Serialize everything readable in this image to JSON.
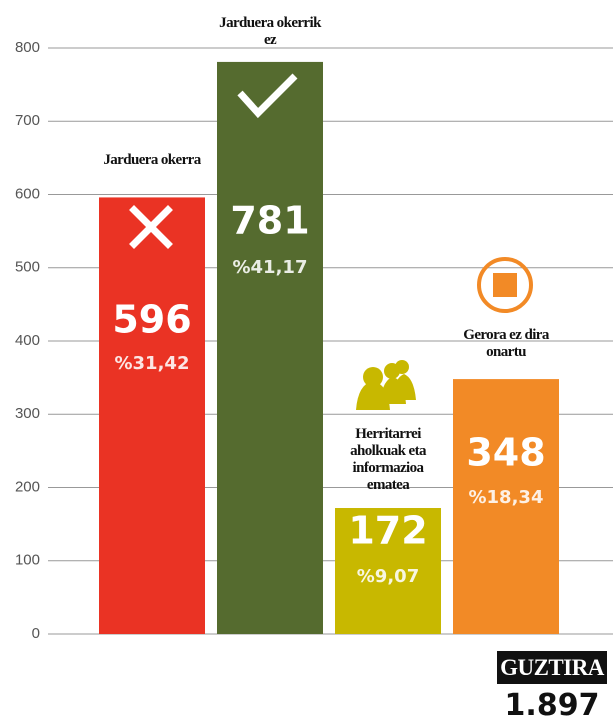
{
  "chart_data": {
    "type": "bar",
    "categories": [
      "Jarduera okerra",
      "Jarduera okerrik ez",
      "Herritarrei aholkuak eta informazioa ematea",
      "Gerora ez dira onartu"
    ],
    "values": [
      596,
      781,
      172,
      348
    ],
    "shares": [
      "%31,42",
      "%41,17",
      "%9,07",
      "%18,34"
    ],
    "colors": [
      "#ea3324",
      "#556b2f",
      "#c8b800",
      "#f28a26"
    ],
    "ylim": [
      0,
      800
    ],
    "yticks": [
      0,
      100,
      200,
      300,
      400,
      500,
      600,
      700,
      800
    ],
    "grid": true,
    "total_label": "GUZTIRA",
    "total": "1.897"
  }
}
